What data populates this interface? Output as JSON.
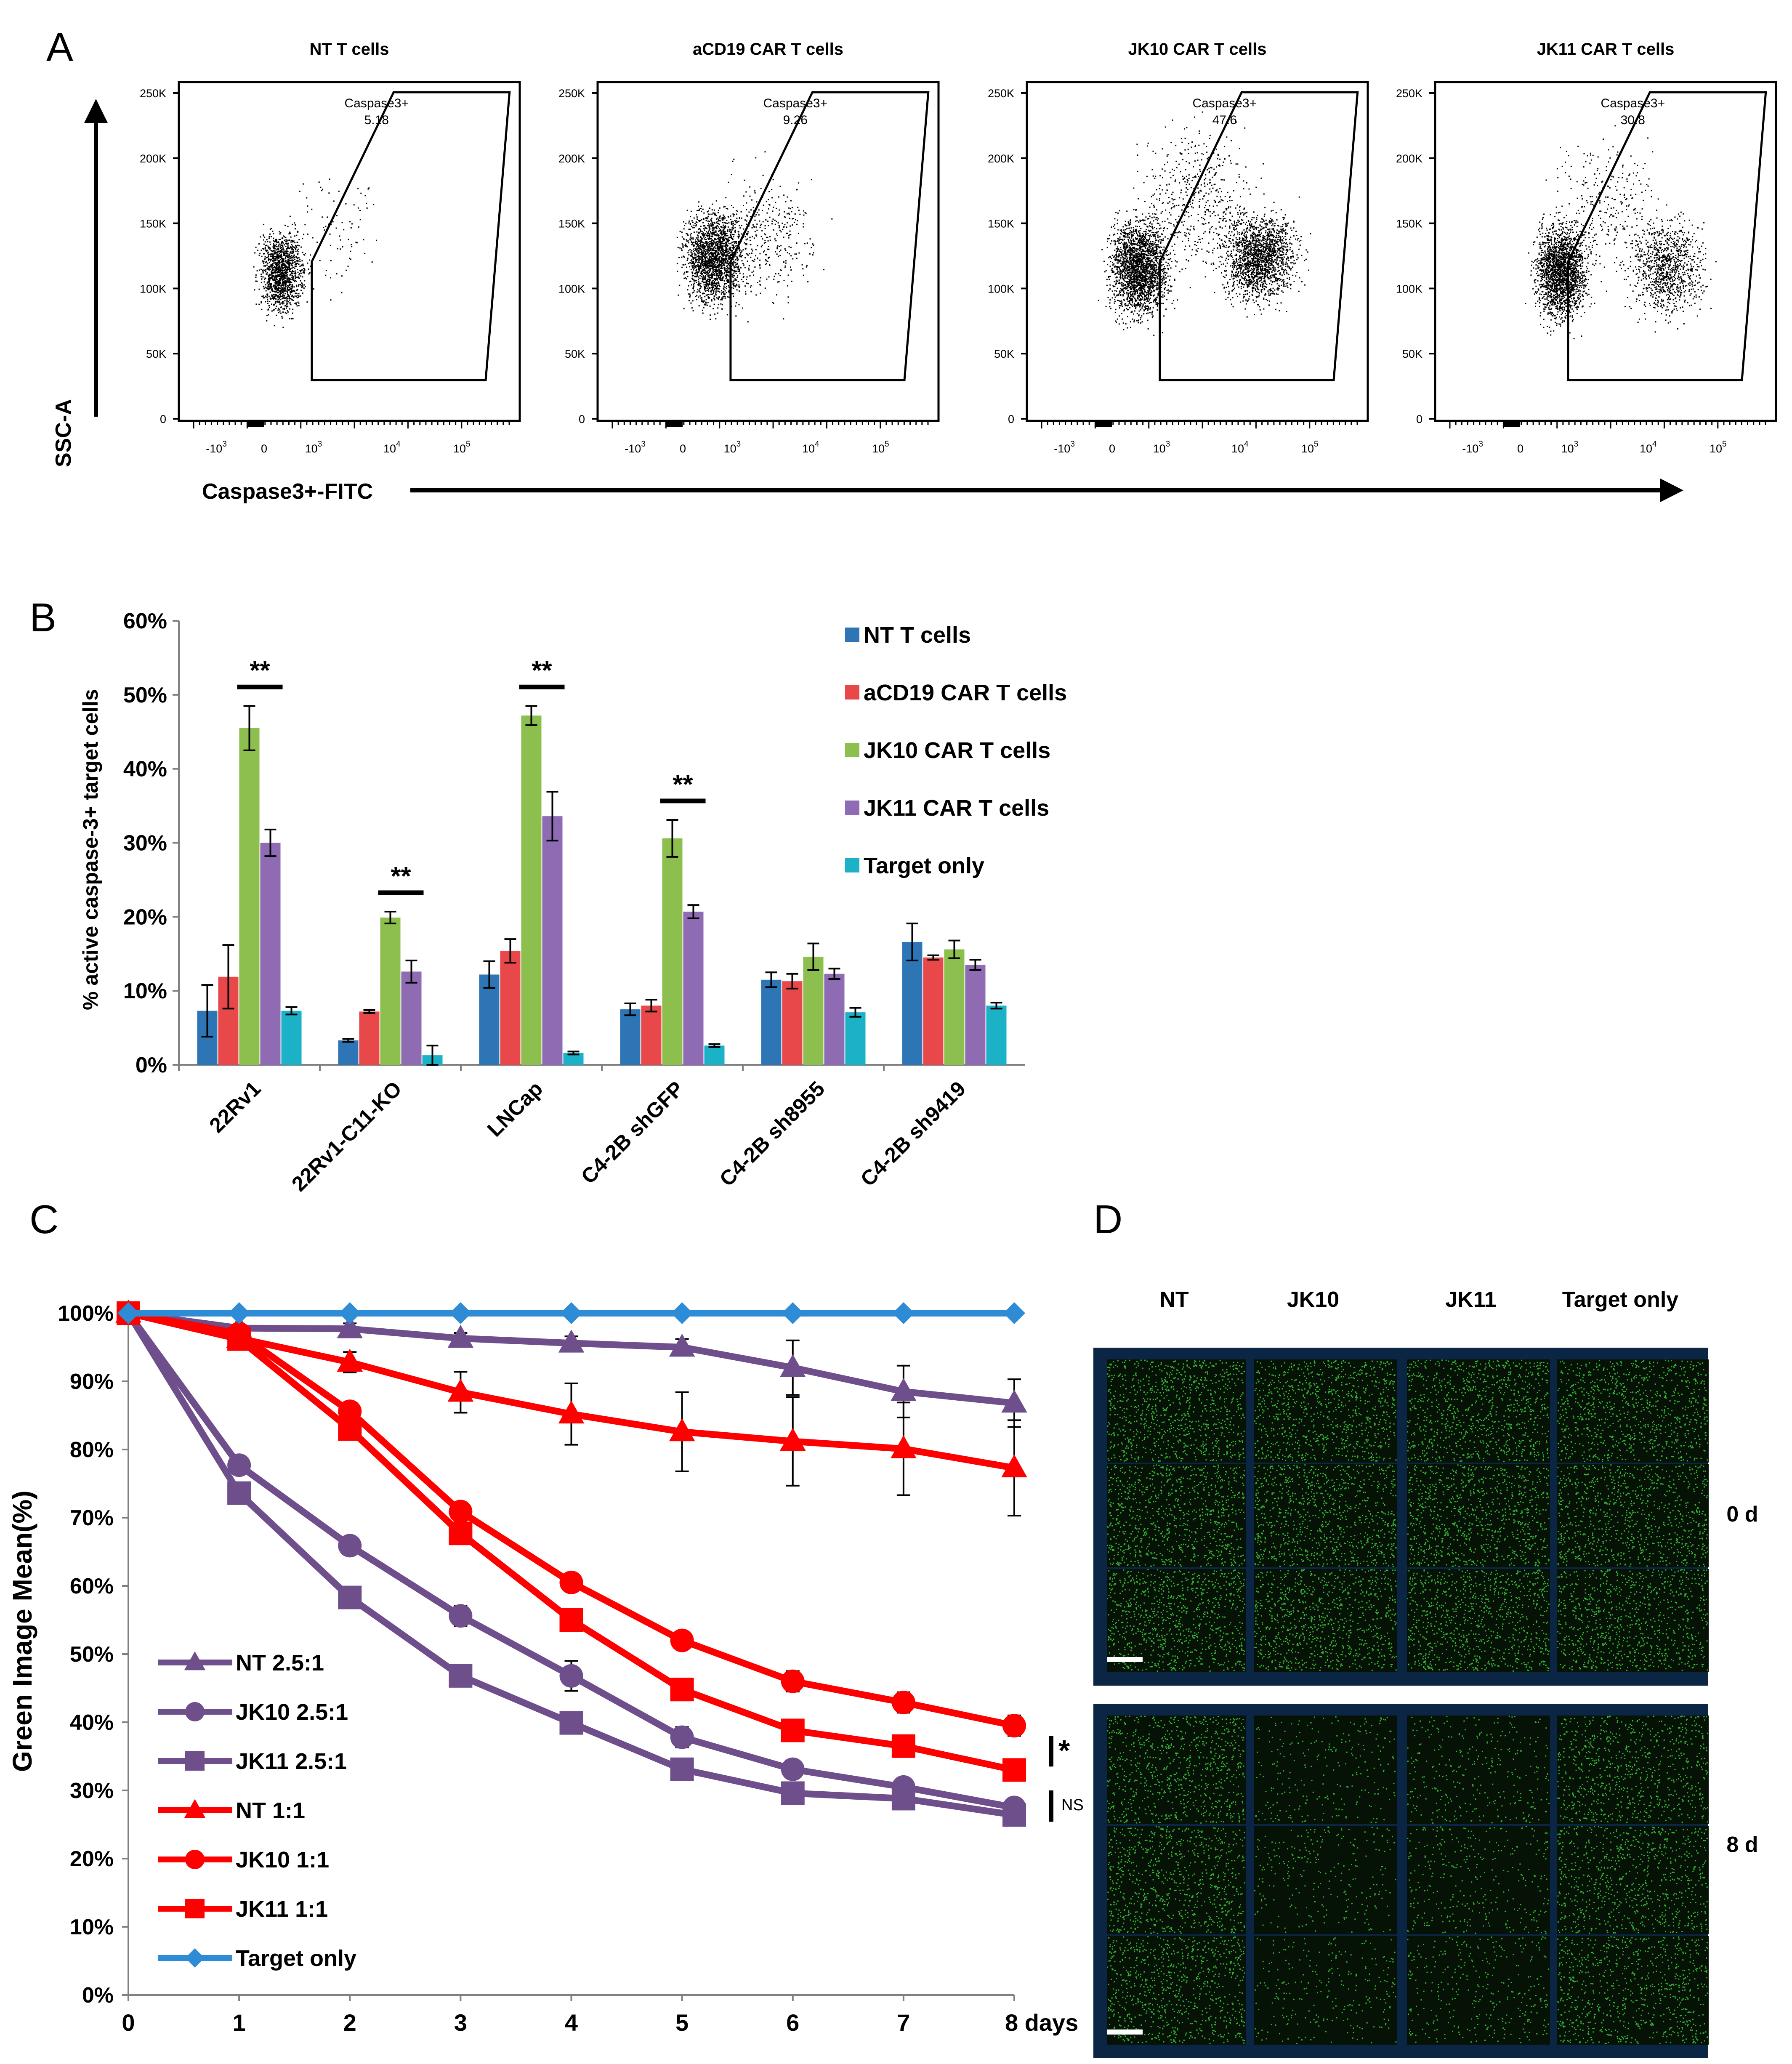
{
  "panel_letters": [
    "A",
    "B",
    "C",
    "D"
  ],
  "panel_a": {
    "y_axis_label": "SSC-A",
    "x_axis_label": "Caspase3+-FITC",
    "gate_label": "Caspase3+",
    "y_ticks": [
      "0",
      "50K",
      "100K",
      "150K",
      "200K",
      "250K"
    ],
    "x_ticks": [
      {
        "base": "-10",
        "exp": "3"
      },
      {
        "base": "0",
        "exp": ""
      },
      {
        "base": "10",
        "exp": "3"
      },
      {
        "base": "10",
        "exp": "4"
      },
      {
        "base": "10",
        "exp": "5"
      }
    ],
    "plots": [
      {
        "title": "NT T cells",
        "gate_value": "5.18"
      },
      {
        "title": "aCD19 CAR T cells",
        "gate_value": "9.26"
      },
      {
        "title": "JK10 CAR  T cells",
        "gate_value": "47.6"
      },
      {
        "title": "JK11 CAR T cells",
        "gate_value": "30.8"
      }
    ]
  },
  "panel_d": {
    "column_labels": [
      "NT",
      "JK10",
      "JK11",
      "Target only"
    ],
    "row_labels": [
      "0 d",
      "8 d"
    ]
  },
  "colors": {
    "blue": "#2E75B6",
    "red_bar": "#E8484A",
    "green": "#8DBF4F",
    "purple_bar": "#8E6BB3",
    "cyan": "#1BB1C7",
    "line_purple": "#6F4E8C",
    "line_red": "#FF0000",
    "line_blue": "#2E8BD6",
    "fluor_bg": "#0B2545",
    "fluor_green": "#3FD23F"
  },
  "chart_data": [
    {
      "type": "bar",
      "panel": "B",
      "ylabel": "% active caspase-3+ target cells",
      "ylim": [
        0,
        60
      ],
      "yticks": [
        "0%",
        "10%",
        "20%",
        "30%",
        "40%",
        "50%",
        "60%"
      ],
      "categories": [
        "22Rv1",
        "22Rv1-C11-KO",
        "LNCap",
        "C4-2B shGFP",
        "C4-2B sh8955",
        "C4-2B sh9419"
      ],
      "series": [
        {
          "name": "NT T cells",
          "values": [
            7.3,
            3.3,
            12.2,
            7.5,
            11.5,
            16.6
          ],
          "errors": [
            3.5,
            0.2,
            1.8,
            0.8,
            1.0,
            2.5
          ]
        },
        {
          "name": "aCD19 CAR T cells",
          "values": [
            11.9,
            7.2,
            15.4,
            8.0,
            11.3,
            14.5
          ],
          "errors": [
            4.3,
            0.2,
            1.6,
            0.8,
            1.0,
            0.3
          ]
        },
        {
          "name": "JK10 CAR T cells",
          "values": [
            45.5,
            19.9,
            47.2,
            30.6,
            14.6,
            15.6
          ],
          "errors": [
            3.0,
            0.8,
            1.3,
            2.5,
            1.8,
            1.2
          ]
        },
        {
          "name": "JK11 CAR T cells",
          "values": [
            30.0,
            12.6,
            33.6,
            20.7,
            12.3,
            13.5
          ],
          "errors": [
            1.8,
            1.5,
            3.3,
            0.9,
            0.7,
            0.7
          ]
        },
        {
          "name": "Target only",
          "values": [
            7.3,
            1.3,
            1.6,
            2.6,
            7.1,
            8.0
          ],
          "errors": [
            0.5,
            1.3,
            0.2,
            0.2,
            0.6,
            0.4
          ]
        }
      ],
      "significance": [
        {
          "category": "22Rv1",
          "label": "**"
        },
        {
          "category": "22Rv1-C11-KO",
          "label": "**"
        },
        {
          "category": "LNCap",
          "label": "**"
        },
        {
          "category": "C4-2B shGFP",
          "label": "**"
        }
      ],
      "legend_position": "right"
    },
    {
      "type": "line",
      "panel": "C",
      "ylabel": "Green Image Mean(%)",
      "xlabel": "days",
      "x": [
        0,
        1,
        2,
        3,
        4,
        5,
        6,
        7,
        8
      ],
      "xtick_labels": [
        "0",
        "1",
        "2",
        "3",
        "4",
        "5",
        "6",
        "7",
        "8 days"
      ],
      "ylim": [
        0,
        100
      ],
      "yticks": [
        "0%",
        "10%",
        "20%",
        "30%",
        "40%",
        "50%",
        "60%",
        "70%",
        "80%",
        "90%",
        "100%"
      ],
      "series": [
        {
          "name": "NT 2.5:1",
          "color": "#6F4E8C",
          "marker": "triangle",
          "values": [
            100,
            97.8,
            97.7,
            96.3,
            95.6,
            95.0,
            92.0,
            88.5,
            86.8
          ],
          "errors": [
            0,
            0.4,
            0.8,
            0.8,
            1.0,
            1.2,
            4.0,
            3.8,
            3.5
          ]
        },
        {
          "name": "JK10 2.5:1",
          "color": "#6F4E8C",
          "marker": "circle",
          "values": [
            100,
            77.7,
            65.9,
            55.6,
            46.8,
            37.8,
            33.1,
            30.5,
            27.5
          ],
          "errors": [
            0,
            0.8,
            0.5,
            1.5,
            2.2,
            1.5,
            1.0,
            0.6,
            0.5
          ]
        },
        {
          "name": "JK11 2.5:1",
          "color": "#6F4E8C",
          "marker": "square",
          "values": [
            100,
            73.6,
            58.3,
            46.8,
            39.9,
            33.1,
            29.6,
            28.8,
            26.4
          ],
          "errors": [
            0,
            0.5,
            0.5,
            0.6,
            0.6,
            0.6,
            0.5,
            0.5,
            0.5
          ]
        },
        {
          "name": "NT 1:1",
          "color": "#FF0000",
          "marker": "triangle",
          "values": [
            100,
            96.3,
            92.8,
            88.4,
            85.2,
            82.6,
            81.2,
            80.1,
            77.3
          ],
          "errors": [
            0,
            0.5,
            1.5,
            3.0,
            4.5,
            5.8,
            6.5,
            6.8,
            7.0
          ]
        },
        {
          "name": "JK10 1:1",
          "color": "#FF0000",
          "marker": "circle",
          "values": [
            100,
            97.0,
            85.6,
            70.9,
            60.5,
            52.0,
            46.0,
            42.9,
            39.5
          ],
          "errors": [
            0,
            0.4,
            0.8,
            0.8,
            0.8,
            1.0,
            1.5,
            1.5,
            1.5
          ]
        },
        {
          "name": "JK11 1:1",
          "color": "#FF0000",
          "marker": "square",
          "values": [
            100,
            96.2,
            83.0,
            67.7,
            55.0,
            44.8,
            38.8,
            36.5,
            33.0
          ],
          "errors": [
            0,
            0.4,
            0.8,
            0.8,
            0.8,
            0.8,
            0.8,
            0.8,
            0.8
          ]
        },
        {
          "name": "Target only",
          "color": "#2E8BD6",
          "marker": "diamond",
          "values": [
            100,
            100,
            100,
            100,
            100,
            100,
            100,
            100,
            100
          ],
          "errors": [
            0,
            0,
            0,
            0,
            0,
            0,
            0,
            0,
            0
          ]
        }
      ],
      "annotations": [
        {
          "label": "*",
          "between": [
            "JK10 1:1",
            "JK11 1:1"
          ]
        },
        {
          "label": "NS",
          "between": [
            "JK10 2.5:1",
            "JK11 2.5:1"
          ]
        }
      ],
      "legend_position": "bottom-left"
    }
  ]
}
